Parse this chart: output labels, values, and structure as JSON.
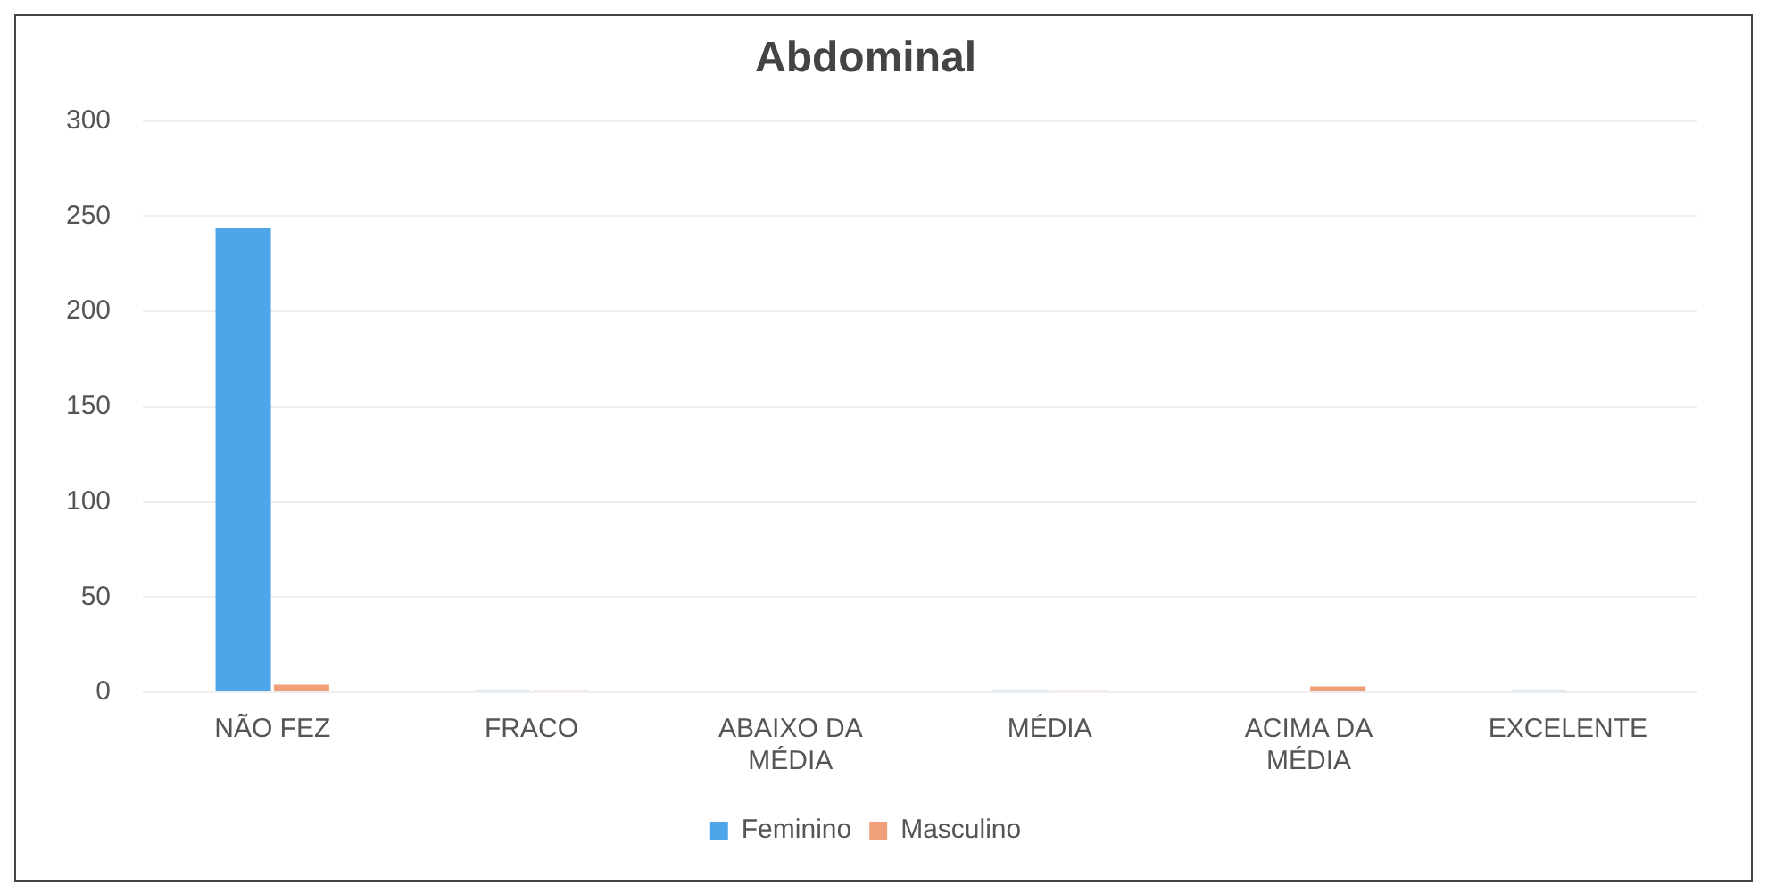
{
  "chart_data": {
    "type": "bar",
    "title": "Abdominal",
    "categories": [
      "NÃO FEZ",
      "FRACO",
      "ABAIXO DA MÉDIA",
      "MÉDIA",
      "ACIMA DA MÉDIA",
      "EXCELENTE"
    ],
    "series": [
      {
        "name": "Feminino",
        "color": "#4ea5e8",
        "values": [
          244,
          1,
          0,
          1,
          0,
          1
        ]
      },
      {
        "name": "Masculino",
        "color": "#f0a078",
        "values": [
          4,
          1,
          0,
          1,
          3,
          0
        ]
      }
    ],
    "ylim": [
      0,
      300
    ],
    "yticks": [
      0,
      50,
      100,
      150,
      200,
      250,
      300
    ],
    "grid": "y",
    "legend": "bottom"
  }
}
